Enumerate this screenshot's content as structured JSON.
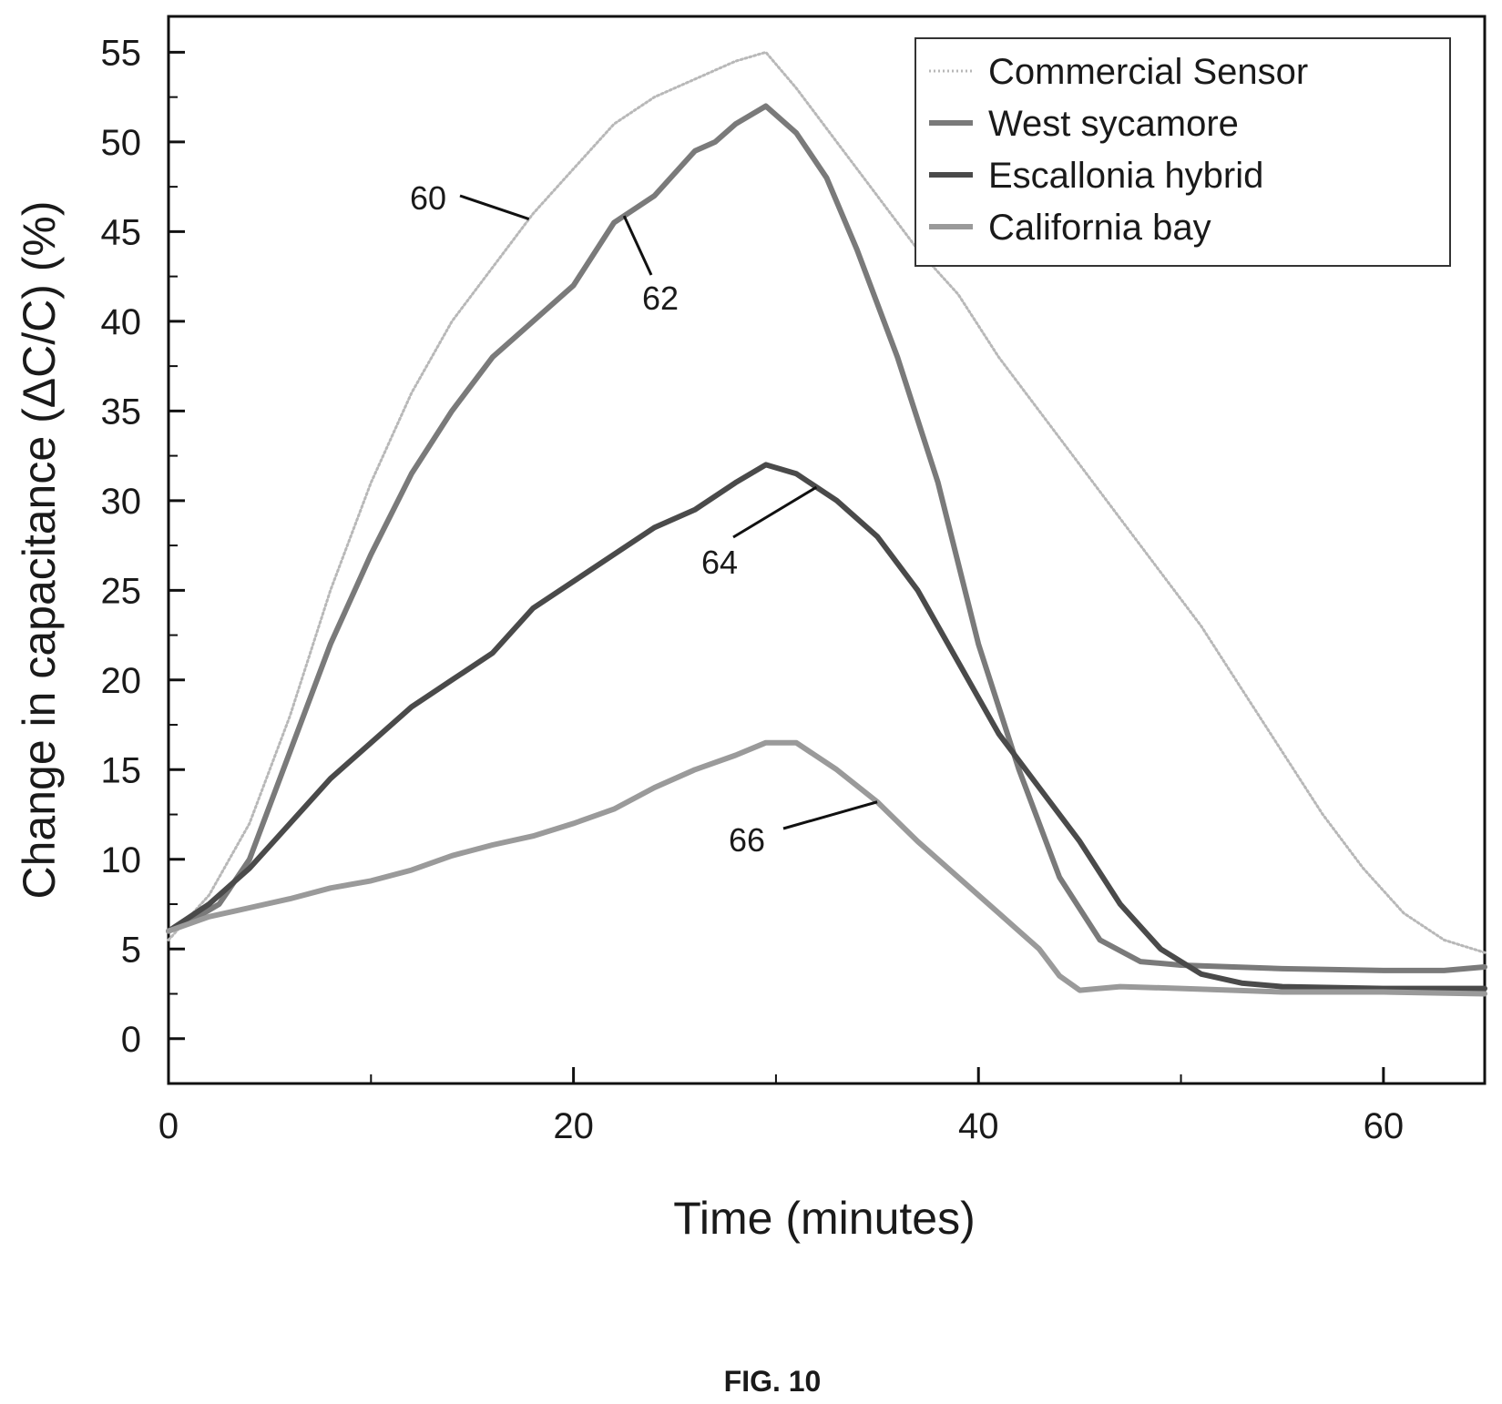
{
  "chart_data": {
    "type": "line",
    "title": "",
    "xlabel": "Time (minutes)",
    "ylabel": "Change in capacitance (ΔC/C) (%)",
    "xlim": [
      0,
      65
    ],
    "ylim": [
      -2.5,
      57
    ],
    "x_ticks": [
      0,
      20,
      40,
      60
    ],
    "y_ticks": [
      0,
      5,
      10,
      15,
      20,
      25,
      30,
      35,
      40,
      45,
      50,
      55
    ],
    "legend_position": "top-right",
    "grid": false,
    "series": [
      {
        "name": "Commercial Sensor",
        "color": "#b8b8b8",
        "style": "dotted",
        "points": [
          [
            0,
            5.5
          ],
          [
            2,
            8
          ],
          [
            4,
            12
          ],
          [
            6,
            18
          ],
          [
            8,
            25
          ],
          [
            10,
            31
          ],
          [
            12,
            36
          ],
          [
            14,
            40
          ],
          [
            16,
            43
          ],
          [
            18,
            46
          ],
          [
            20,
            48.5
          ],
          [
            22,
            51
          ],
          [
            24,
            52.5
          ],
          [
            26,
            53.5
          ],
          [
            28,
            54.5
          ],
          [
            29.5,
            55
          ],
          [
            31,
            53
          ],
          [
            33,
            50
          ],
          [
            35,
            47
          ],
          [
            37,
            44
          ],
          [
            39,
            41.5
          ],
          [
            41,
            38
          ],
          [
            43,
            35
          ],
          [
            45,
            32
          ],
          [
            47,
            29
          ],
          [
            49,
            26
          ],
          [
            51,
            23
          ],
          [
            53,
            19.5
          ],
          [
            55,
            16
          ],
          [
            57,
            12.5
          ],
          [
            59,
            9.5
          ],
          [
            61,
            7
          ],
          [
            63,
            5.5
          ],
          [
            65,
            4.8
          ]
        ]
      },
      {
        "name": "West sycamore",
        "color": "#7a7a7a",
        "style": "solid",
        "points": [
          [
            0,
            6
          ],
          [
            1,
            6.5
          ],
          [
            2.5,
            7.5
          ],
          [
            4,
            10
          ],
          [
            6,
            16
          ],
          [
            8,
            22
          ],
          [
            10,
            27
          ],
          [
            12,
            31.5
          ],
          [
            14,
            35
          ],
          [
            16,
            38
          ],
          [
            18,
            40
          ],
          [
            20,
            42
          ],
          [
            22,
            45.5
          ],
          [
            24,
            47
          ],
          [
            26,
            49.5
          ],
          [
            27,
            50
          ],
          [
            28,
            51
          ],
          [
            29.5,
            52
          ],
          [
            31,
            50.5
          ],
          [
            32.5,
            48
          ],
          [
            34,
            44
          ],
          [
            36,
            38
          ],
          [
            38,
            31
          ],
          [
            40,
            22
          ],
          [
            42,
            15
          ],
          [
            44,
            9
          ],
          [
            46,
            5.5
          ],
          [
            48,
            4.3
          ],
          [
            50,
            4.1
          ],
          [
            55,
            3.9
          ],
          [
            60,
            3.8
          ],
          [
            63,
            3.8
          ],
          [
            65,
            4
          ]
        ]
      },
      {
        "name": "Escallonia hybrid",
        "color": "#4a4a4a",
        "style": "solid",
        "points": [
          [
            0,
            6
          ],
          [
            2,
            7.5
          ],
          [
            4,
            9.5
          ],
          [
            6,
            12
          ],
          [
            8,
            14.5
          ],
          [
            10,
            16.5
          ],
          [
            12,
            18.5
          ],
          [
            14,
            20
          ],
          [
            16,
            21.5
          ],
          [
            18,
            24
          ],
          [
            20,
            25.5
          ],
          [
            22,
            27
          ],
          [
            24,
            28.5
          ],
          [
            26,
            29.5
          ],
          [
            28,
            31
          ],
          [
            29.5,
            32
          ],
          [
            31,
            31.5
          ],
          [
            33,
            30
          ],
          [
            35,
            28
          ],
          [
            37,
            25
          ],
          [
            39,
            21
          ],
          [
            41,
            17
          ],
          [
            43,
            14
          ],
          [
            45,
            11
          ],
          [
            47,
            7.5
          ],
          [
            49,
            5
          ],
          [
            51,
            3.6
          ],
          [
            53,
            3.1
          ],
          [
            55,
            2.9
          ],
          [
            60,
            2.8
          ],
          [
            65,
            2.8
          ]
        ]
      },
      {
        "name": "California bay",
        "color": "#9a9a9a",
        "style": "solid",
        "points": [
          [
            0,
            6
          ],
          [
            2,
            6.8
          ],
          [
            4,
            7.3
          ],
          [
            6,
            7.8
          ],
          [
            8,
            8.4
          ],
          [
            10,
            8.8
          ],
          [
            12,
            9.4
          ],
          [
            14,
            10.2
          ],
          [
            16,
            10.8
          ],
          [
            18,
            11.3
          ],
          [
            20,
            12
          ],
          [
            22,
            12.8
          ],
          [
            24,
            14
          ],
          [
            26,
            15
          ],
          [
            28,
            15.8
          ],
          [
            29.5,
            16.5
          ],
          [
            31,
            16.5
          ],
          [
            33,
            15
          ],
          [
            35,
            13.2
          ],
          [
            37,
            11
          ],
          [
            39,
            9
          ],
          [
            41,
            7
          ],
          [
            43,
            5
          ],
          [
            44,
            3.5
          ],
          [
            45,
            2.7
          ],
          [
            47,
            2.9
          ],
          [
            50,
            2.8
          ],
          [
            55,
            2.6
          ],
          [
            60,
            2.6
          ],
          [
            65,
            2.5
          ]
        ]
      }
    ],
    "callouts": [
      {
        "label": "60",
        "series": "Commercial Sensor"
      },
      {
        "label": "62",
        "series": "West sycamore"
      },
      {
        "label": "64",
        "series": "Escallonia hybrid"
      },
      {
        "label": "66",
        "series": "California bay"
      }
    ]
  },
  "figure_caption": "FIG. 10"
}
